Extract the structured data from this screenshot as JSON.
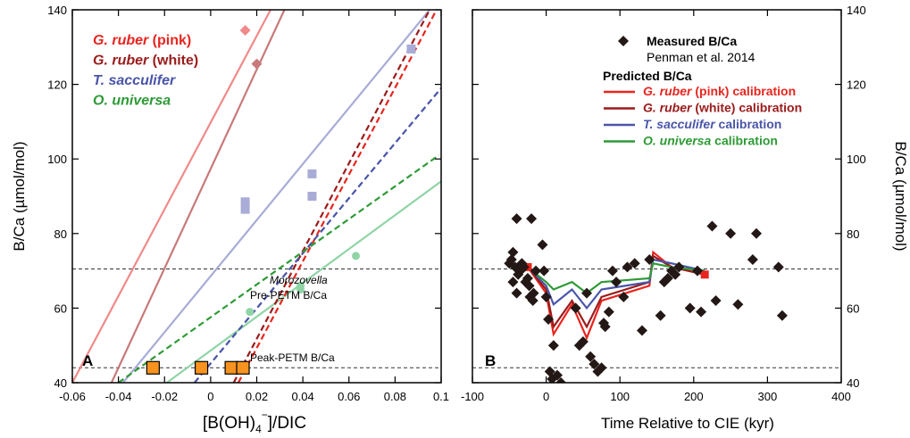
{
  "colors": {
    "pink": "#e8251f",
    "white": "#9b1b1b",
    "sacculifer": "#4a55a8",
    "universa": "#2e9a36",
    "pink_light": "#f08a8a",
    "white_light": "#c77a7a",
    "sacculifer_light": "#a8acd6",
    "universa_light": "#8fd4a5",
    "peak_square": "#f7931e",
    "measured": "#231815"
  },
  "chart_data": [
    {
      "type": "scatter",
      "panel_label": "A",
      "xlabel_main": "[B(OH)",
      "xlabel_sub": "4",
      "xlabel_sup": "−",
      "xlabel_end": "]/DIC",
      "ylabel": "B/Ca (µmol/mol)",
      "xlim": [
        -0.06,
        0.1
      ],
      "ylim": [
        40,
        140
      ],
      "xticks": [
        "-0.06",
        "-0.04",
        "-0.02",
        "0",
        "0.02",
        "0.04",
        "0.06",
        "0.08",
        "0.1"
      ],
      "xtick_values": [
        -0.06,
        -0.04,
        -0.02,
        0,
        0.02,
        0.04,
        0.06,
        0.08,
        0.1
      ],
      "yticks": [
        "40",
        "60",
        "80",
        "100",
        "120",
        "140"
      ],
      "ytick_values": [
        40,
        60,
        80,
        100,
        120,
        140
      ],
      "legend": [
        {
          "italic": "G. ruber",
          "rest": " (pink)",
          "color_key": "pink"
        },
        {
          "italic": "G. ruber",
          "rest": " (white)",
          "color_key": "white"
        },
        {
          "italic": "T. sacculifer",
          "rest": "",
          "color_key": "sacculifer"
        },
        {
          "italic": "O. universa",
          "rest": "",
          "color_key": "universa"
        }
      ],
      "calibration_lines": [
        {
          "name": "G. ruber (pink)",
          "color_key": "pink_light",
          "points": [
            [
              -0.06,
              40
            ],
            [
              0.026,
              140
            ]
          ]
        },
        {
          "name": "G. ruber (white)",
          "color_key": "white_light",
          "points": [
            [
              -0.043,
              40
            ],
            [
              0.032,
              140
            ]
          ]
        },
        {
          "name": "T. sacculifer",
          "color_key": "sacculifer_light",
          "points": [
            [
              -0.038,
              40
            ],
            [
              0.095,
              140
            ]
          ]
        },
        {
          "name": "O. universa",
          "color_key": "universa_light",
          "points": [
            [
              -0.019,
              40
            ],
            [
              0.1,
              94
            ]
          ]
        }
      ],
      "prediction_lines": [
        {
          "name": "G. ruber (pink)",
          "color_key": "pink",
          "points": [
            [
              0.012,
              40
            ],
            [
              0.098,
              140
            ]
          ]
        },
        {
          "name": "G. ruber (white)",
          "color_key": "white",
          "points": [
            [
              0.01,
              40
            ],
            [
              0.095,
              140
            ]
          ]
        },
        {
          "name": "T. sacculifer",
          "color_key": "sacculifer",
          "points": [
            [
              -0.007,
              40
            ],
            [
              0.1,
              119
            ]
          ]
        },
        {
          "name": "O. universa",
          "color_key": "universa",
          "points": [
            [
              -0.04,
              40
            ],
            [
              0.099,
              101
            ]
          ]
        }
      ],
      "points": [
        {
          "series": "G. ruber (pink)",
          "marker": "diamond",
          "color_key": "pink_light",
          "values": [
            [
              0.015,
              134.5
            ]
          ]
        },
        {
          "series": "G. ruber (white)",
          "marker": "diamond",
          "color_key": "white_light",
          "values": [
            [
              0.02,
              125.5
            ]
          ]
        },
        {
          "series": "T. sacculifer",
          "marker": "square",
          "color_key": "sacculifer_light",
          "values": [
            [
              0.015,
              88.5
            ],
            [
              0.015,
              86.5
            ],
            [
              0.044,
              96
            ],
            [
              0.044,
              90
            ],
            [
              0.087,
              129.5
            ]
          ]
        },
        {
          "series": "O. universa",
          "marker": "circle",
          "color_key": "universa_light",
          "values": [
            [
              0.017,
              59
            ],
            [
              0.039,
              66
            ],
            [
              0.039,
              65
            ],
            [
              0.063,
              74
            ]
          ]
        },
        {
          "series": "Peak-PETM",
          "marker": "square",
          "color_key": "peak_square",
          "values": [
            [
              -0.025,
              44
            ],
            [
              -0.004,
              44
            ],
            [
              0.009,
              44
            ],
            [
              0.014,
              44
            ]
          ]
        }
      ],
      "hlines": [
        70.5,
        44
      ],
      "annotations": {
        "morozovella": "Morozovella",
        "pre_petm": "Pre-PETM B/Ca",
        "peak_petm": "Peak-PETM B/Ca"
      }
    },
    {
      "type": "scatter",
      "panel_label": "B",
      "xlabel": "Time Relative to CIE (kyr)",
      "ylabel": "B/Ca (µmol/mol)",
      "xlim": [
        -100,
        400
      ],
      "ylim": [
        40,
        140
      ],
      "xticks": [
        "-100",
        "0",
        "100",
        "200",
        "300",
        "400"
      ],
      "xtick_values": [
        -100,
        0,
        100,
        200,
        300,
        400
      ],
      "yticks": [
        "40",
        "60",
        "80",
        "100",
        "120",
        "140"
      ],
      "ytick_values": [
        40,
        60,
        80,
        100,
        120,
        140
      ],
      "legend": {
        "measured": "Measured B/Ca",
        "source": "Penman et al. 2014",
        "predicted": "Predicted B/Ca",
        "calibration_word": " calibration",
        "entries": [
          {
            "italic": "G. ruber",
            "rest": " (pink)",
            "color_key": "pink"
          },
          {
            "italic": "G. ruber",
            "rest": " (white)",
            "color_key": "white"
          },
          {
            "italic": "T. sacculifer",
            "rest": "",
            "color_key": "sacculifer"
          },
          {
            "italic": "O. universa",
            "rest": "",
            "color_key": "universa"
          }
        ]
      },
      "measured_points": [
        [
          -50,
          72
        ],
        [
          -47,
          73
        ],
        [
          -45,
          75
        ],
        [
          -42,
          71
        ],
        [
          -40,
          84
        ],
        [
          -38,
          69
        ],
        [
          -35,
          70
        ],
        [
          -33,
          72
        ],
        [
          -30,
          71
        ],
        [
          -28,
          67
        ],
        [
          -25,
          68
        ],
        [
          -23,
          66
        ],
        [
          -22,
          63
        ],
        [
          -20,
          84
        ],
        [
          -18,
          62
        ],
        [
          -17,
          64
        ],
        [
          -14,
          70
        ],
        [
          -45,
          67
        ],
        [
          -40,
          64
        ],
        [
          -5,
          77
        ],
        [
          -3,
          70
        ],
        [
          0,
          63
        ],
        [
          3,
          57
        ],
        [
          5,
          43
        ],
        [
          8,
          41
        ],
        [
          10,
          50
        ],
        [
          15,
          42
        ],
        [
          20,
          40
        ],
        [
          40,
          60
        ],
        [
          45,
          50
        ],
        [
          50,
          51
        ],
        [
          55,
          64
        ],
        [
          60,
          47
        ],
        [
          65,
          45
        ],
        [
          70,
          43
        ],
        [
          75,
          44
        ],
        [
          78,
          56
        ],
        [
          80,
          55
        ],
        [
          85,
          59
        ],
        [
          90,
          70
        ],
        [
          95,
          67
        ],
        [
          105,
          63
        ],
        [
          110,
          71
        ],
        [
          120,
          72
        ],
        [
          130,
          54
        ],
        [
          140,
          73
        ],
        [
          155,
          58
        ],
        [
          160,
          67
        ],
        [
          165,
          68
        ],
        [
          170,
          70
        ],
        [
          175,
          69
        ],
        [
          180,
          71
        ],
        [
          195,
          60
        ],
        [
          205,
          70
        ],
        [
          210,
          59
        ],
        [
          225,
          82
        ],
        [
          230,
          62
        ],
        [
          250,
          80
        ],
        [
          260,
          61
        ],
        [
          280,
          73
        ],
        [
          285,
          80
        ],
        [
          315,
          71
        ],
        [
          320,
          58
        ]
      ],
      "predicted_series": [
        {
          "name": "G. ruber (pink)",
          "color_key": "pink",
          "points": [
            [
              -25,
              71
            ],
            [
              0,
              64
            ],
            [
              10,
              53
            ],
            [
              35,
              61
            ],
            [
              55,
              52
            ],
            [
              75,
              62
            ],
            [
              140,
              66
            ],
            [
              145,
              75
            ],
            [
              170,
              71
            ],
            [
              215,
              69
            ]
          ]
        },
        {
          "name": "G. ruber (white)",
          "color_key": "white",
          "points": [
            [
              -25,
              71
            ],
            [
              0,
              65
            ],
            [
              10,
              55
            ],
            [
              35,
              62
            ],
            [
              55,
              55
            ],
            [
              75,
              63
            ],
            [
              140,
              67
            ],
            [
              145,
              74
            ],
            [
              170,
              71
            ],
            [
              215,
              69
            ]
          ]
        },
        {
          "name": "T. sacculifer",
          "color_key": "sacculifer",
          "points": [
            [
              -25,
              71
            ],
            [
              0,
              66
            ],
            [
              10,
              61
            ],
            [
              35,
              65
            ],
            [
              55,
              60
            ],
            [
              75,
              65
            ],
            [
              140,
              67
            ],
            [
              145,
              73
            ],
            [
              170,
              72
            ],
            [
              215,
              70
            ]
          ]
        },
        {
          "name": "O. universa",
          "color_key": "universa",
          "points": [
            [
              -25,
              71
            ],
            [
              0,
              67
            ],
            [
              10,
              65
            ],
            [
              35,
              67
            ],
            [
              55,
              64
            ],
            [
              75,
              67
            ],
            [
              140,
              68
            ],
            [
              145,
              72
            ],
            [
              170,
              71
            ],
            [
              215,
              70
            ]
          ]
        }
      ],
      "hlines": [
        70.5,
        44
      ]
    }
  ]
}
